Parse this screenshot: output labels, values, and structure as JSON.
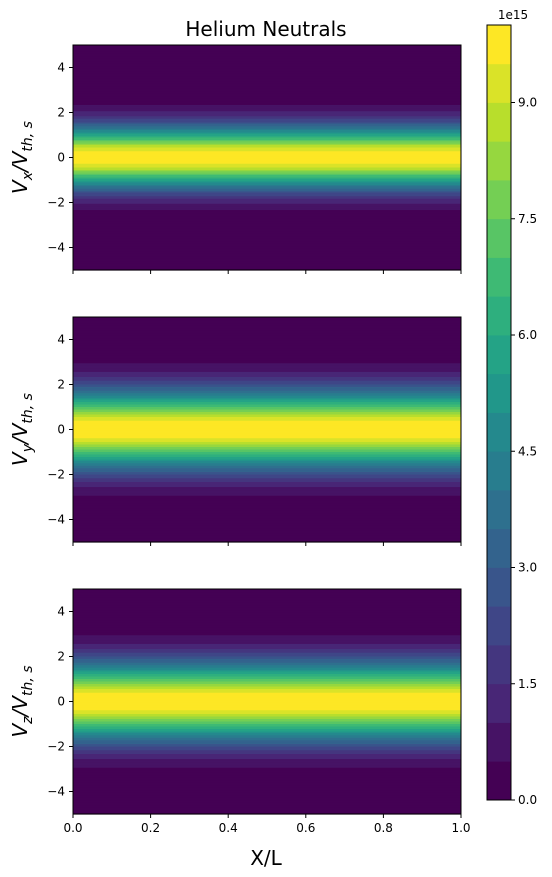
{
  "chart_data": {
    "type": "heatmap",
    "title": "Helium Neutrals",
    "xlabel": "X/L",
    "xlim": [
      0.0,
      1.0
    ],
    "x_ticks": [
      "0.0",
      "0.2",
      "0.4",
      "0.6",
      "0.8",
      "1.0"
    ],
    "ylim": [
      -5,
      5
    ],
    "y_ticks": [
      "4",
      "2",
      "0",
      "−2",
      "−4"
    ],
    "panels": [
      {
        "ylabel_main": "V",
        "ylabel_sub": "x",
        "ylabel_den": "/V",
        "ylabel_den_sub": "th, s",
        "peak_width": 0.95,
        "shared_x": true
      },
      {
        "ylabel_main": "V",
        "ylabel_sub": "y",
        "ylabel_den": "/V",
        "ylabel_den_sub": "th, s",
        "peak_width": 1.2,
        "shared_x": true
      },
      {
        "ylabel_main": "V",
        "ylabel_sub": "z",
        "ylabel_den": "/V",
        "ylabel_den_sub": "th, s",
        "peak_width": 1.2,
        "shared_x": false
      }
    ],
    "colorbar": {
      "min": 0.0,
      "max": 1e+16,
      "levels": 20,
      "offset_label": "1e15",
      "tick_labels": [
        "0.0",
        "1.5",
        "3.0",
        "4.5",
        "6.0",
        "7.5",
        "9.0"
      ],
      "tick_values": [
        0.0,
        1.5,
        3.0,
        4.5,
        6.0,
        7.5,
        9.0
      ],
      "colormap": "viridis"
    },
    "grid": false
  }
}
